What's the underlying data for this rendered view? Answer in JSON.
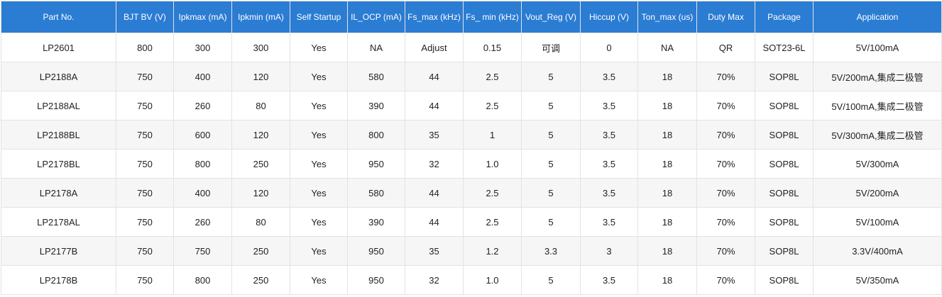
{
  "table": {
    "header": [
      "Part No.",
      "BJT BV (V)",
      "Ipkmax (mA)",
      "Ipkmin (mA)",
      "Self Startup",
      "IL_OCP (mA)",
      "Fs_max (kHz)",
      "Fs_ min (kHz)",
      "Vout_Reg (V)",
      "Hiccup (V)",
      "Ton_max (us)",
      "Duty Max",
      "Package",
      "Application"
    ],
    "rows": [
      [
        "LP2601",
        "800",
        "300",
        "300",
        "Yes",
        "NA",
        "Adjust",
        "0.15",
        "可调",
        "0",
        "NA",
        "QR",
        "SOT23-6L",
        "5V/100mA"
      ],
      [
        "LP2188A",
        "750",
        "400",
        "120",
        "Yes",
        "580",
        "44",
        "2.5",
        "5",
        "3.5",
        "18",
        "70%",
        "SOP8L",
        "5V/200mA,集成二极管"
      ],
      [
        "LP2188AL",
        "750",
        "260",
        "80",
        "Yes",
        "390",
        "44",
        "2.5",
        "5",
        "3.5",
        "18",
        "70%",
        "SOP8L",
        "5V/100mA,集成二极管"
      ],
      [
        "LP2188BL",
        "750",
        "600",
        "120",
        "Yes",
        "800",
        "35",
        "1",
        "5",
        "3.5",
        "18",
        "70%",
        "SOP8L",
        "5V/300mA,集成二极管"
      ],
      [
        "LP2178BL",
        "750",
        "800",
        "250",
        "Yes",
        "950",
        "32",
        "1.0",
        "5",
        "3.5",
        "18",
        "70%",
        "SOP8L",
        "5V/300mA"
      ],
      [
        "LP2178A",
        "750",
        "400",
        "120",
        "Yes",
        "580",
        "44",
        "2.5",
        "5",
        "3.5",
        "18",
        "70%",
        "SOP8L",
        "5V/200mA"
      ],
      [
        "LP2178AL",
        "750",
        "260",
        "80",
        "Yes",
        "390",
        "44",
        "2.5",
        "5",
        "3.5",
        "18",
        "70%",
        "SOP8L",
        "5V/100mA"
      ],
      [
        "LP2177B",
        "750",
        "750",
        "250",
        "Yes",
        "950",
        "35",
        "1.2",
        "3.3",
        "3",
        "18",
        "70%",
        "SOP8L",
        "3.3V/400mA"
      ],
      [
        "LP2178B",
        "750",
        "800",
        "250",
        "Yes",
        "950",
        "32",
        "1.0",
        "5",
        "3.5",
        "18",
        "70%",
        "SOP8L",
        "5V/350mA"
      ]
    ]
  }
}
